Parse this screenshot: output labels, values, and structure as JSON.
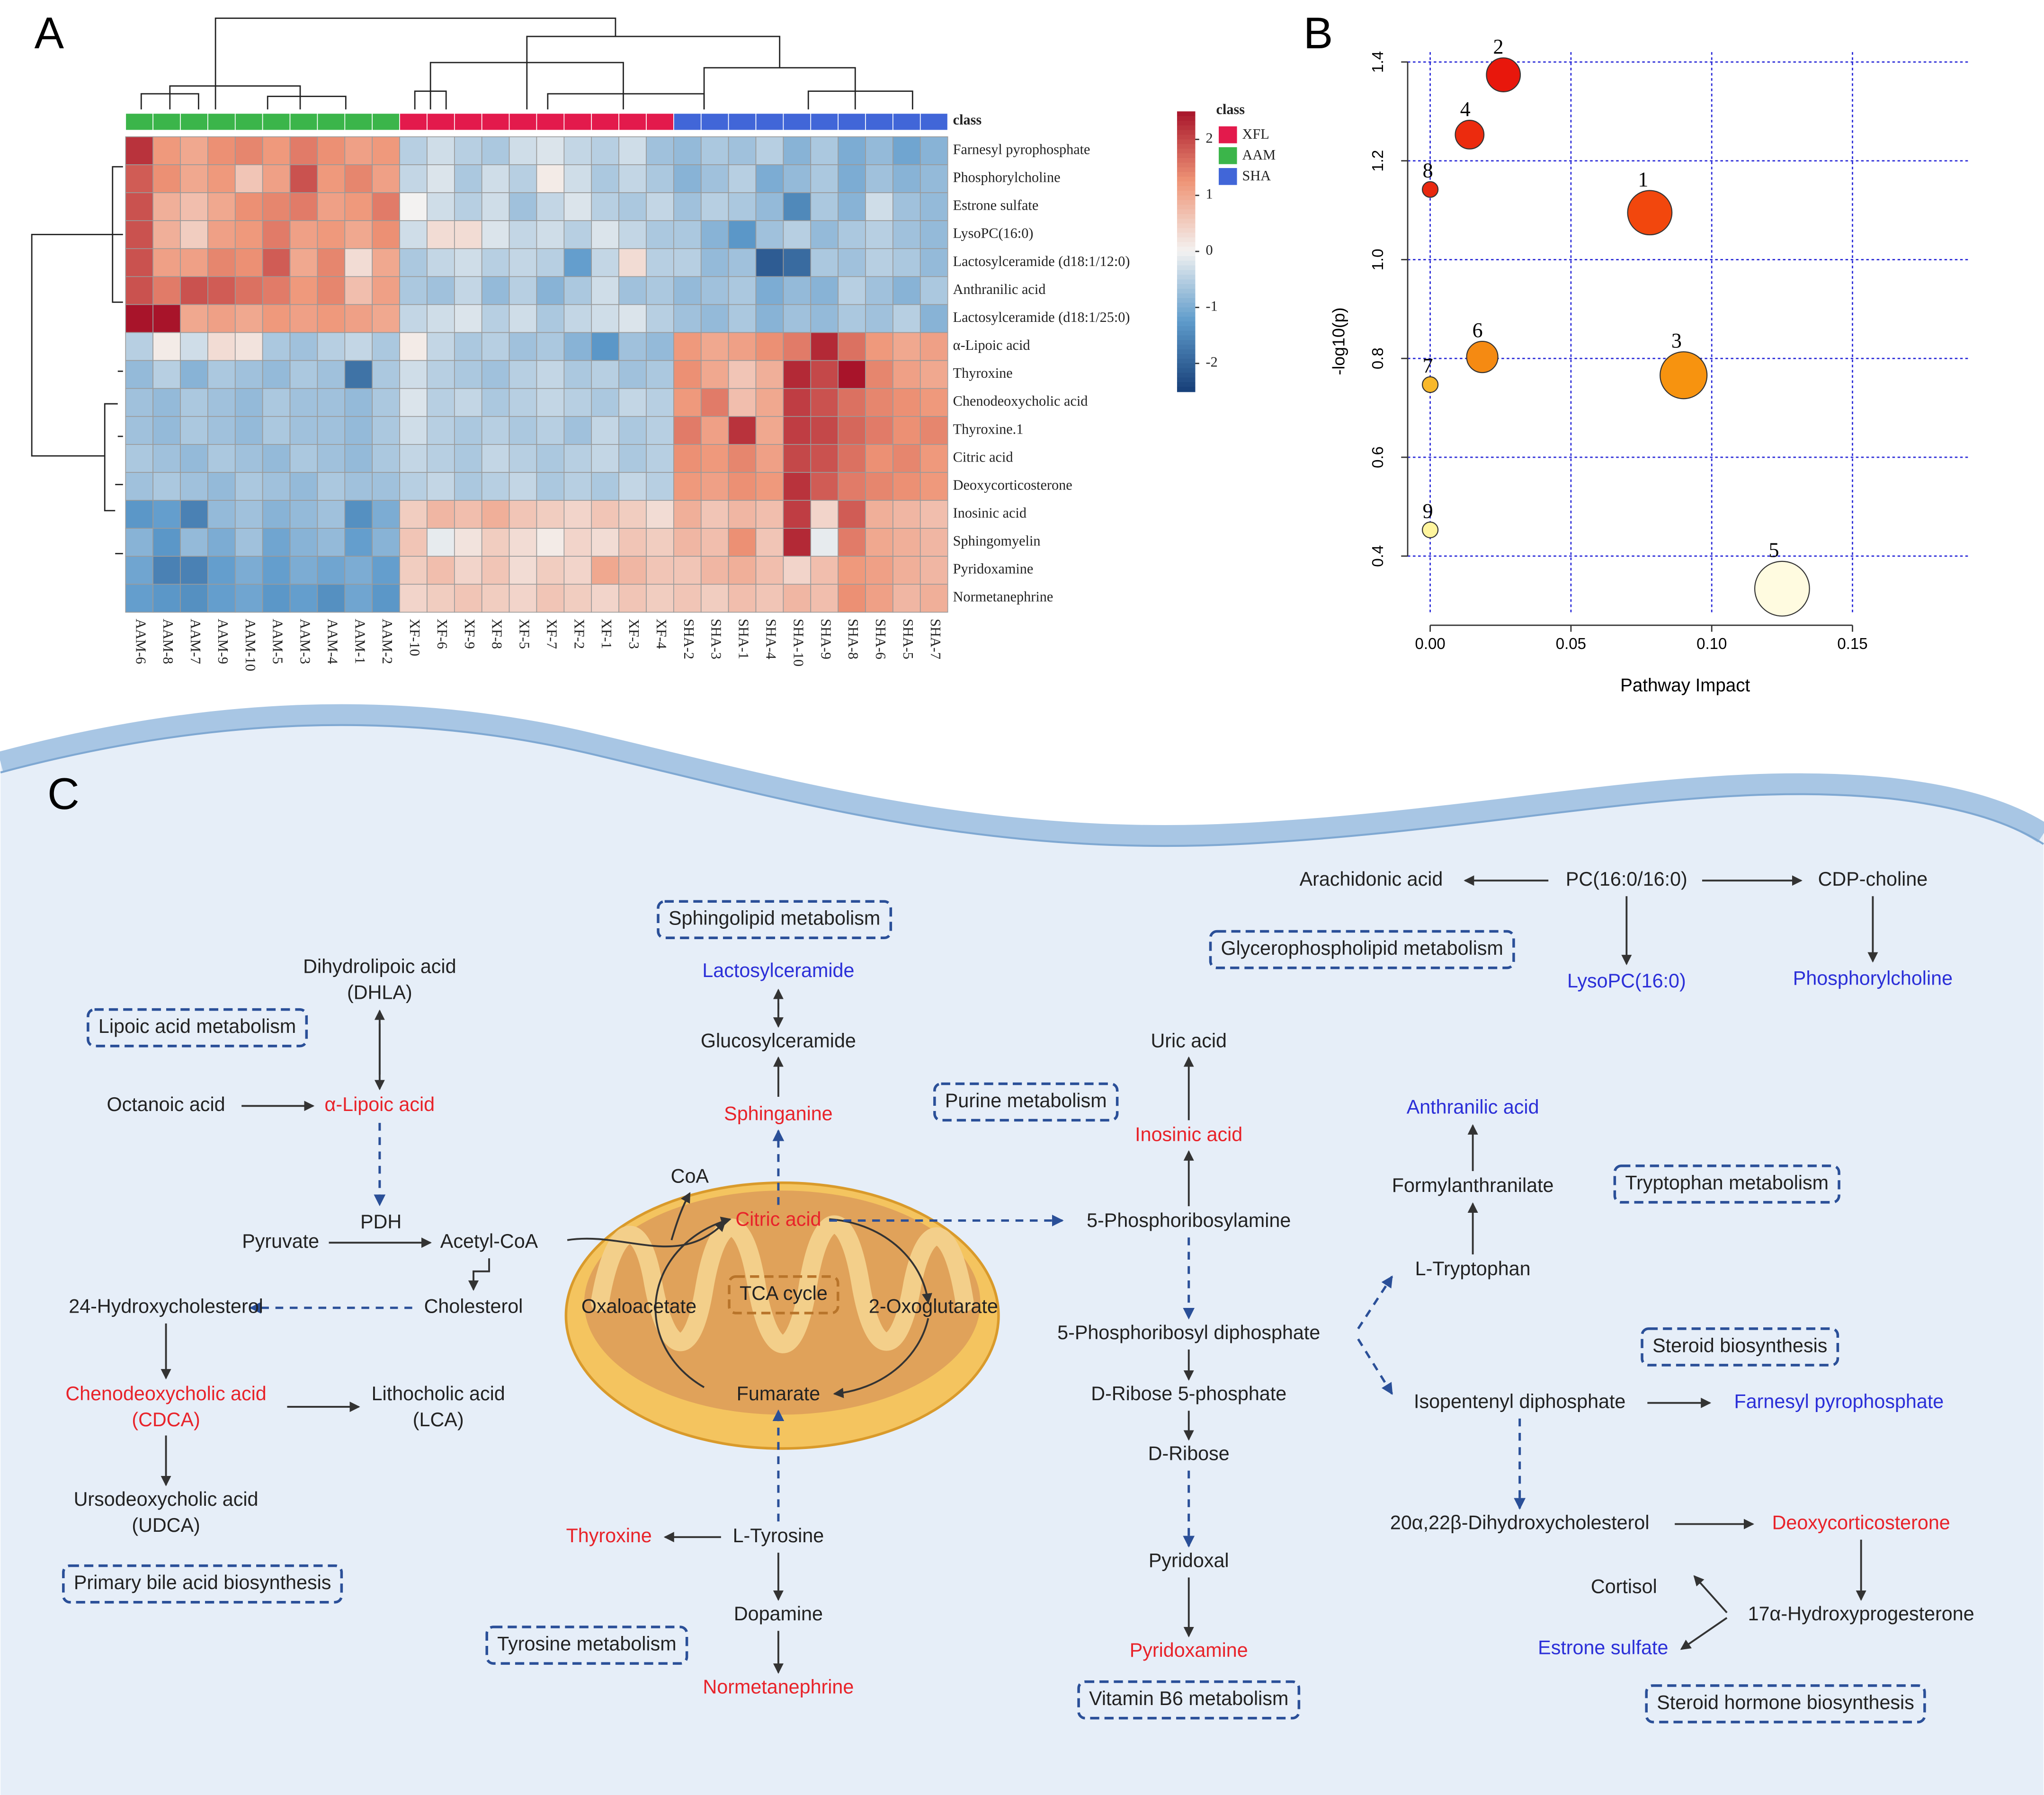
{
  "panel_labels": [
    "A",
    "B",
    "C"
  ],
  "chart_data": [
    {
      "type": "heatmap",
      "columns": [
        "AAM-6",
        "AAM-8",
        "AAM-7",
        "AAM-9",
        "AAM-10",
        "AAM-5",
        "AAM-3",
        "AAM-4",
        "AAM-1",
        "AAM-2",
        "XF-10",
        "XF-6",
        "XF-9",
        "XF-8",
        "XF-5",
        "XF-7",
        "XF-2",
        "XF-1",
        "XF-3",
        "XF-4",
        "SHA-2",
        "SHA-3",
        "SHA-1",
        "SHA-4",
        "SHA-10",
        "SHA-9",
        "SHA-8",
        "SHA-6",
        "SHA-5",
        "SHA-7"
      ],
      "rows": [
        "Farnesyl pyrophosphate",
        "Phosphorylcholine",
        "Estrone sulfate",
        "LysoPC(16:0)",
        "Lactosylceramide (d18:1/12:0)",
        "Anthranilic acid",
        "Lactosylceramide (d18:1/25:0)",
        "α-Lipoic acid",
        "Thyroxine",
        "Chenodeoxycholic acid",
        "Thyroxine.1",
        "Citric acid",
        "Deoxycorticosterone",
        "Inosinic acid",
        "Sphingomyelin",
        "Pyridoxamine",
        "Normetanephrine"
      ],
      "values": [
        [
          2.2,
          1.2,
          1.0,
          1.3,
          1.4,
          1.2,
          1.5,
          1.3,
          1.1,
          1.2,
          -0.5,
          -0.3,
          -0.5,
          -0.6,
          -0.3,
          -0.2,
          -0.4,
          -0.5,
          -0.3,
          -0.7,
          -0.8,
          -0.6,
          -0.7,
          -0.5,
          -0.9,
          -0.6,
          -1.0,
          -0.8,
          -1.1,
          -0.9
        ],
        [
          1.8,
          1.3,
          1.0,
          1.2,
          0.6,
          1.1,
          1.9,
          1.2,
          1.4,
          1.1,
          -0.4,
          -0.2,
          -0.6,
          -0.3,
          -0.5,
          0.1,
          -0.3,
          -0.6,
          -0.4,
          -0.6,
          -0.9,
          -0.7,
          -0.5,
          -1.0,
          -0.8,
          -0.6,
          -1.0,
          -0.7,
          -0.9,
          -0.8
        ],
        [
          1.9,
          0.9,
          0.7,
          1.0,
          1.3,
          1.4,
          1.5,
          1.1,
          1.2,
          1.5,
          0.0,
          -0.3,
          -0.5,
          -0.3,
          -0.7,
          -0.4,
          -0.2,
          -0.5,
          -0.6,
          -0.4,
          -0.7,
          -0.5,
          -0.6,
          -0.8,
          -1.5,
          -0.6,
          -0.9,
          -0.3,
          -0.7,
          -0.8
        ],
        [
          1.9,
          0.9,
          0.5,
          1.1,
          1.2,
          1.5,
          1.1,
          1.2,
          1.0,
          1.3,
          -0.3,
          0.3,
          0.3,
          -0.2,
          -0.4,
          -0.3,
          -0.5,
          -0.2,
          -0.4,
          -0.6,
          -0.6,
          -0.9,
          -1.3,
          -0.7,
          -0.5,
          -0.8,
          -0.6,
          -0.5,
          -0.7,
          -0.8
        ],
        [
          1.9,
          1.1,
          1.1,
          1.4,
          1.3,
          1.8,
          1.0,
          1.4,
          0.3,
          1.0,
          -0.6,
          -0.4,
          -0.3,
          -0.5,
          -0.4,
          -0.5,
          -1.2,
          -0.4,
          0.3,
          -0.5,
          -0.5,
          -0.8,
          -0.7,
          -2.1,
          -1.9,
          -0.6,
          -0.7,
          -0.5,
          -0.6,
          -0.8
        ],
        [
          1.9,
          1.5,
          1.9,
          1.8,
          1.6,
          1.5,
          1.2,
          1.4,
          0.7,
          1.1,
          -0.6,
          -0.7,
          -0.4,
          -0.8,
          -0.5,
          -0.9,
          -0.6,
          -0.3,
          -0.7,
          -0.6,
          -0.8,
          -0.7,
          -0.6,
          -1.0,
          -0.8,
          -0.9,
          -0.5,
          -0.7,
          -0.9,
          -0.6
        ],
        [
          2.6,
          2.6,
          1.0,
          1.1,
          1.0,
          1.2,
          1.1,
          1.2,
          1.1,
          1.0,
          -0.4,
          -0.3,
          -0.2,
          -0.5,
          -0.3,
          -0.6,
          -0.4,
          -0.3,
          -0.2,
          -0.5,
          -0.7,
          -0.8,
          -0.6,
          -0.9,
          -0.7,
          -0.8,
          -0.6,
          -0.7,
          -0.5,
          -0.9
        ],
        [
          -0.5,
          0.1,
          -0.3,
          0.3,
          0.2,
          -0.6,
          -0.7,
          -0.5,
          -0.4,
          -0.6,
          0.1,
          -0.4,
          -0.6,
          -0.5,
          -0.7,
          -0.6,
          -0.9,
          -1.3,
          -0.7,
          -0.8,
          1.2,
          1.0,
          1.1,
          1.3,
          1.5,
          2.3,
          1.6,
          1.2,
          1.0,
          1.1
        ],
        [
          -0.8,
          -0.5,
          -0.9,
          -0.6,
          -0.7,
          -0.8,
          -0.6,
          -0.7,
          -1.8,
          -0.6,
          -0.3,
          -0.5,
          -0.6,
          -0.7,
          -0.5,
          -0.4,
          -0.6,
          -0.5,
          -0.7,
          -0.6,
          1.3,
          1.0,
          0.6,
          0.9,
          2.3,
          2.0,
          2.6,
          1.4,
          1.1,
          1.0
        ],
        [
          -0.7,
          -0.8,
          -0.6,
          -0.7,
          -0.8,
          -0.6,
          -0.7,
          -0.7,
          -0.8,
          -0.6,
          -0.2,
          -0.5,
          -0.4,
          -0.6,
          -0.5,
          -0.4,
          -0.5,
          -0.6,
          -0.4,
          -0.5,
          1.2,
          1.5,
          0.7,
          1.0,
          2.1,
          1.9,
          1.6,
          1.4,
          1.3,
          1.2
        ],
        [
          -0.7,
          -0.8,
          -0.6,
          -0.7,
          -0.8,
          -0.6,
          -0.7,
          -0.7,
          -0.8,
          -0.6,
          -0.3,
          -0.5,
          -0.6,
          -0.5,
          -0.6,
          -0.5,
          -0.7,
          -0.4,
          -0.6,
          -0.5,
          1.5,
          1.1,
          2.2,
          1.0,
          2.1,
          2.0,
          1.7,
          1.5,
          1.3,
          1.4
        ],
        [
          -0.6,
          -0.7,
          -0.8,
          -0.6,
          -0.7,
          -0.8,
          -0.6,
          -0.7,
          -0.8,
          -0.6,
          -0.4,
          -0.5,
          -0.6,
          -0.4,
          -0.5,
          -0.6,
          -0.5,
          -0.4,
          -0.6,
          -0.5,
          1.3,
          1.2,
          1.4,
          1.1,
          2.0,
          1.9,
          1.6,
          1.3,
          1.4,
          1.2
        ],
        [
          -0.7,
          -0.6,
          -0.7,
          -0.8,
          -0.6,
          -0.7,
          -0.8,
          -0.6,
          -0.7,
          -0.7,
          -0.5,
          -0.4,
          -0.6,
          -0.5,
          -0.4,
          -0.6,
          -0.5,
          -0.6,
          -0.4,
          -0.5,
          1.2,
          1.1,
          1.3,
          1.2,
          2.2,
          1.8,
          1.5,
          1.4,
          1.3,
          1.2
        ],
        [
          -1.3,
          -1.2,
          -1.6,
          -0.8,
          -0.7,
          -0.9,
          -0.8,
          -0.7,
          -1.4,
          -1.0,
          0.5,
          0.8,
          0.7,
          0.9,
          0.6,
          0.5,
          0.4,
          0.6,
          0.5,
          0.3,
          0.9,
          0.6,
          0.8,
          0.7,
          2.1,
          0.4,
          1.8,
          0.9,
          0.8,
          0.7
        ],
        [
          -0.9,
          -1.3,
          -0.8,
          -1.0,
          -0.7,
          -1.1,
          -0.9,
          -0.8,
          -1.2,
          -0.9,
          0.6,
          -0.1,
          0.2,
          0.5,
          0.3,
          0.1,
          0.4,
          0.3,
          0.6,
          0.5,
          0.8,
          0.7,
          1.3,
          0.6,
          2.3,
          -0.1,
          1.5,
          1.0,
          0.9,
          0.8
        ],
        [
          -1.1,
          -1.6,
          -1.6,
          -1.2,
          -1.0,
          -1.2,
          -1.0,
          -1.1,
          -1.0,
          -1.2,
          0.5,
          0.7,
          0.4,
          0.6,
          0.3,
          0.5,
          0.4,
          1.0,
          0.8,
          0.6,
          0.6,
          0.8,
          0.9,
          0.7,
          0.4,
          0.7,
          1.2,
          1.1,
          0.9,
          0.8
        ],
        [
          -1.2,
          -1.3,
          -1.4,
          -1.2,
          -1.1,
          -1.3,
          -1.2,
          -1.4,
          -1.1,
          -1.3,
          0.4,
          0.5,
          0.6,
          0.5,
          0.4,
          0.6,
          0.5,
          0.4,
          0.6,
          0.5,
          0.6,
          0.5,
          0.7,
          0.6,
          0.8,
          0.7,
          1.3,
          1.1,
          0.8,
          0.9
        ]
      ],
      "clim": [
        -2.5,
        2.5
      ],
      "colorbar_ticks": [
        2,
        1,
        0,
        -1,
        -2
      ],
      "colors": [
        "#173f78",
        "#5e9bcb",
        "#f3f2f1",
        "#ef9577",
        "#a8142a"
      ],
      "class_title": "class",
      "classes": [
        {
          "name": "XFL",
          "color": "#e31a4c"
        },
        {
          "name": "AAM",
          "color": "#3bb54a"
        },
        {
          "name": "SHA",
          "color": "#4166d8"
        }
      ],
      "column_class": [
        "AAM",
        "AAM",
        "AAM",
        "AAM",
        "AAM",
        "AAM",
        "AAM",
        "AAM",
        "AAM",
        "AAM",
        "XFL",
        "XFL",
        "XFL",
        "XFL",
        "XFL",
        "XFL",
        "XFL",
        "XFL",
        "XFL",
        "XFL",
        "SHA",
        "SHA",
        "SHA",
        "SHA",
        "SHA",
        "SHA",
        "SHA",
        "SHA",
        "SHA",
        "SHA"
      ]
    },
    {
      "type": "scatter",
      "labels": [
        "1",
        "2",
        "3",
        "4",
        "5",
        "6",
        "7",
        "8",
        "9"
      ],
      "x": [
        0.078,
        0.026,
        0.09,
        0.014,
        0.125,
        0.0185,
        0,
        0,
        0
      ],
      "values": [
        1.095,
        1.374,
        0.766,
        1.253,
        0.334,
        0.803,
        0.747,
        1.142,
        0.453
      ],
      "sizes": [
        17,
        13,
        18,
        11,
        21,
        12,
        6,
        6,
        6
      ],
      "colors": [
        "#f2470d",
        "#e8170c",
        "#f7930f",
        "#ec2b0e",
        "#fffbe0",
        "#f58a12",
        "#f8b82a",
        "#e8280f",
        "#fff59e"
      ],
      "xlabel": "Pathway Impact",
      "ylabel": "-log10(p)",
      "xlim": [
        -0.008,
        0.191
      ],
      "ylim": [
        0.26,
        1.42
      ],
      "xticks": [
        {
          "value": 0,
          "label": "0.00"
        },
        {
          "value": 0.05,
          "label": "0.05"
        },
        {
          "value": 0.1,
          "label": "0.10"
        },
        {
          "value": 0.15,
          "label": "0.15"
        }
      ],
      "yticks": [
        0.4,
        0.6,
        0.8,
        {
          "value": 1.0,
          "label": "1.0"
        },
        1.2,
        1.4
      ],
      "grid": true
    }
  ],
  "diagram": {
    "nodes": [
      {
        "label": "Arachidonic acid",
        "color": "#222222"
      },
      {
        "label": "PC(16:0/16:0)",
        "color": "#222222"
      },
      {
        "label": "CDP-choline",
        "color": "#222222"
      },
      {
        "label": "LysoPC(16:0)",
        "color": "#2b2fd8"
      },
      {
        "label": "Phosphorylcholine",
        "color": "#2b2fd8"
      },
      {
        "label": "Dihydrolipoic acid",
        "color": "#222222"
      },
      {
        "label": "(DHLA)",
        "color": "#222222"
      },
      {
        "label": "Octanoic acid",
        "color": "#222222"
      },
      {
        "label": "α-Lipoic acid",
        "color": "#e8232a"
      },
      {
        "label": "PDH",
        "color": "#222222"
      },
      {
        "label": "Pyruvate",
        "color": "#222222"
      },
      {
        "label": "Acetyl-CoA",
        "color": "#222222"
      },
      {
        "label": "Cholesterol",
        "color": "#222222"
      },
      {
        "label": "24-Hydroxycholesterol",
        "color": "#222222"
      },
      {
        "label": "Chenodeoxycholic acid",
        "color": "#e8232a"
      },
      {
        "label": "(CDCA)",
        "color": "#e8232a"
      },
      {
        "label": "Lithocholic acid",
        "color": "#222222"
      },
      {
        "label": "(LCA)",
        "color": "#222222"
      },
      {
        "label": "Ursodeoxycholic acid",
        "color": "#222222"
      },
      {
        "label": "(UDCA)",
        "color": "#222222"
      },
      {
        "label": "Lactosylceramide",
        "color": "#2b2fd8"
      },
      {
        "label": "Glucosylceramide",
        "color": "#222222"
      },
      {
        "label": "Sphinganine",
        "color": "#e8232a"
      },
      {
        "label": "CoA",
        "color": "#222222"
      },
      {
        "label": "Citric acid",
        "color": "#e8232a"
      },
      {
        "label": "Oxaloacetate",
        "color": "#222222"
      },
      {
        "label": "2-Oxoglutarate",
        "color": "#222222"
      },
      {
        "label": "Fumarate",
        "color": "#222222"
      },
      {
        "label": "Thyroxine",
        "color": "#e8232a"
      },
      {
        "label": "L-Tyrosine",
        "color": "#222222"
      },
      {
        "label": "Dopamine",
        "color": "#222222"
      },
      {
        "label": "Normetanephrine",
        "color": "#e8232a"
      },
      {
        "label": "Uric acid",
        "color": "#222222"
      },
      {
        "label": "Inosinic acid",
        "color": "#e8232a"
      },
      {
        "label": "5-Phosphoribosylamine",
        "color": "#222222"
      },
      {
        "label": "5-Phosphoribosyl diphosphate",
        "color": "#222222"
      },
      {
        "label": "D-Ribose 5-phosphate",
        "color": "#222222"
      },
      {
        "label": "D-Ribose",
        "color": "#222222"
      },
      {
        "label": "Pyridoxal",
        "color": "#222222"
      },
      {
        "label": "Pyridoxamine",
        "color": "#e8232a"
      },
      {
        "label": "Anthranilic acid",
        "color": "#2b2fd8"
      },
      {
        "label": "Formylanthranilate",
        "color": "#222222"
      },
      {
        "label": "L-Tryptophan",
        "color": "#222222"
      },
      {
        "label": "Isopentenyl diphosphate",
        "color": "#222222"
      },
      {
        "label": "Farnesyl pyrophosphate",
        "color": "#2b2fd8"
      },
      {
        "label": "20α,22β-Dihydroxycholesterol",
        "color": "#222222"
      },
      {
        "label": "Deoxycorticosterone",
        "color": "#e8232a"
      },
      {
        "label": "Cortisol",
        "color": "#222222"
      },
      {
        "label": "17α-Hydroxyprogesterone",
        "color": "#222222"
      },
      {
        "label": "Estrone sulfate",
        "color": "#2b2fd8"
      }
    ],
    "pathways": [
      {
        "label": "Sphingolipid metabolism"
      },
      {
        "label": "Glycerophospholipid metabolism"
      },
      {
        "label": "Lipoic acid metabolism"
      },
      {
        "label": "Purine metabolism"
      },
      {
        "label": "Tryptophan metabolism"
      },
      {
        "label": "TCA cycle"
      },
      {
        "label": "Steroid biosynthesis"
      },
      {
        "label": "Primary bile acid biosynthesis"
      },
      {
        "label": "Tyrosine metabolism"
      },
      {
        "label": "Vitamin B6 metabolism"
      },
      {
        "label": "Steroid hormone biosynthesis"
      }
    ]
  }
}
